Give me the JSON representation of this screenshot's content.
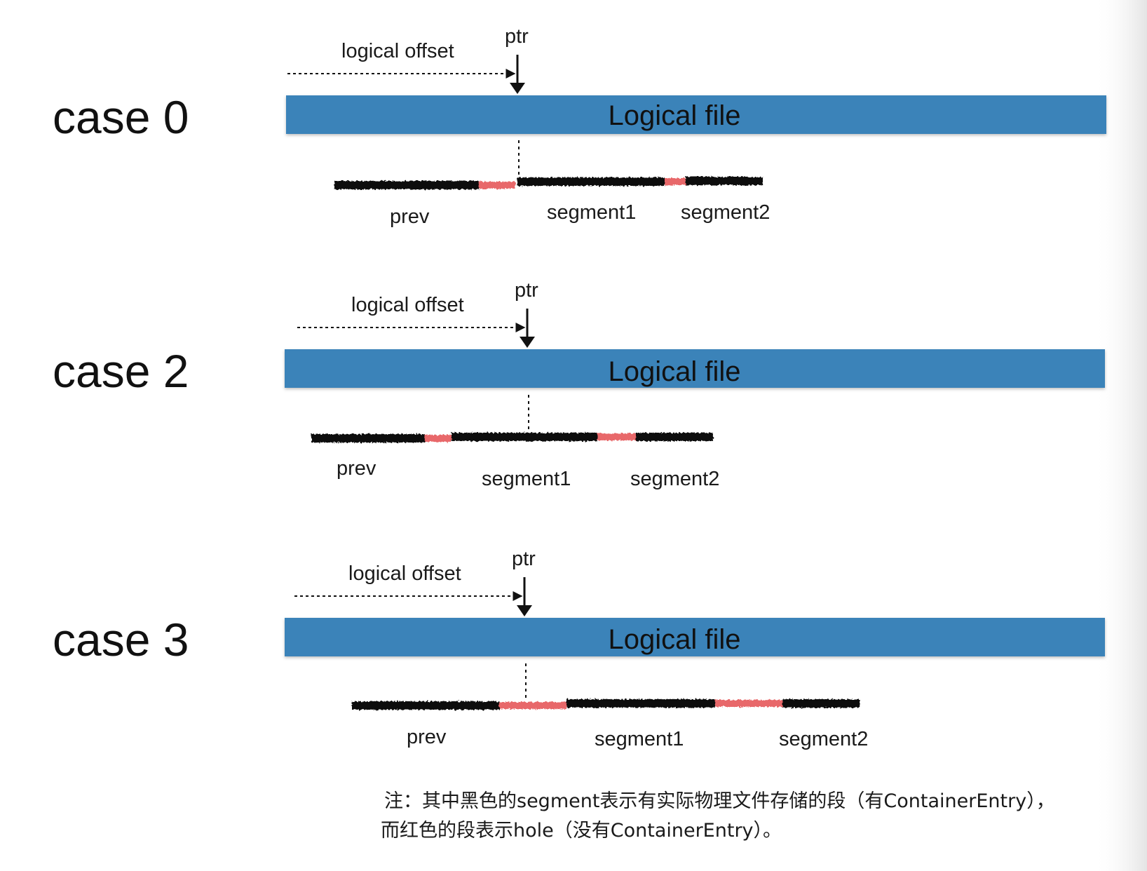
{
  "colors": {
    "file_bar": "#3a83b9",
    "segment_data": "#111111",
    "segment_hole": "#e8686a",
    "right_shadow": "#e9e9e9"
  },
  "cases": [
    {
      "label": "case 0",
      "offset_label": "logical offset",
      "ptr_label": "ptr",
      "file_label": "Logical file",
      "segment_labels": {
        "prev": "prev",
        "segment1": "segment1",
        "segment2": "segment2"
      }
    },
    {
      "label": "case 2",
      "offset_label": "logical offset",
      "ptr_label": "ptr",
      "file_label": "Logical file",
      "segment_labels": {
        "prev": "prev",
        "segment1": "segment1",
        "segment2": "segment2"
      }
    },
    {
      "label": "case 3",
      "offset_label": "logical offset",
      "ptr_label": "ptr",
      "file_label": "Logical file",
      "segment_labels": {
        "prev": "prev",
        "segment1": "segment1",
        "segment2": "segment2"
      }
    }
  ],
  "note": {
    "line1": "注：其中黑色的segment表示有实际物理文件存储的段（有ContainerEntry），",
    "line2": "而红色的段表示hole（没有ContainerEntry）。"
  }
}
